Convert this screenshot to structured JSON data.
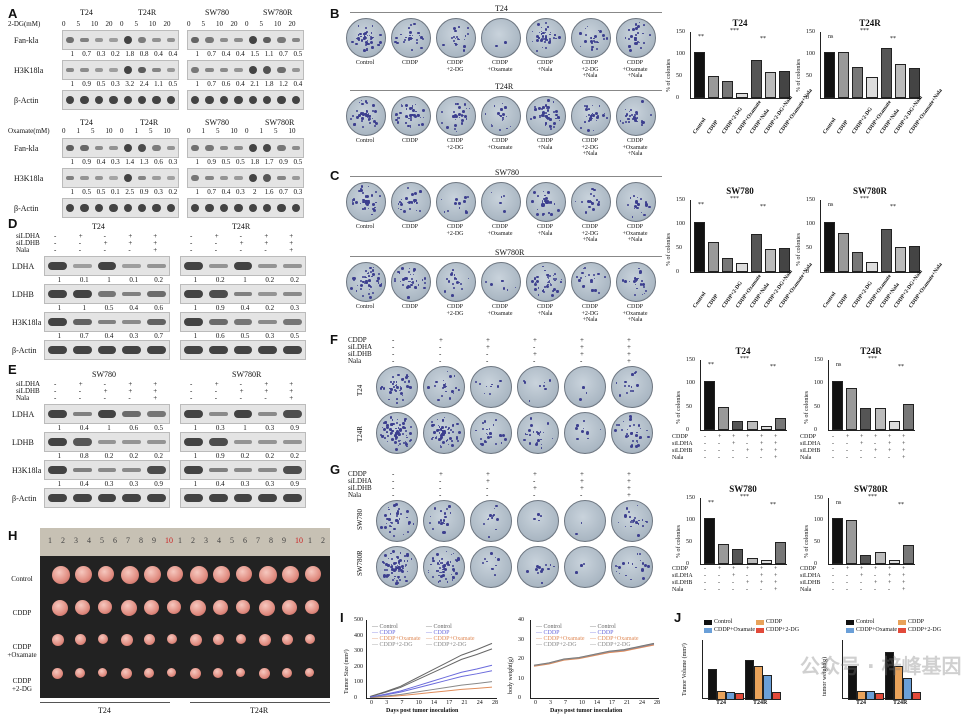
{
  "panels": {
    "A": "A",
    "B": "B",
    "C": "C",
    "D": "D",
    "E": "E",
    "F": "F",
    "G": "G",
    "H": "H",
    "I": "I",
    "J": "J"
  },
  "panelA": {
    "top_cells": [
      "T24",
      "T24R",
      "SW780",
      "SW780R"
    ],
    "dg_label": "2-DG(mM)",
    "dg_doses": [
      "0",
      "5",
      "10",
      "20"
    ],
    "rows": [
      {
        "name": "Fan-kla",
        "vals_left": [
          "1",
          "0.7",
          "0.3",
          "0.2",
          "1.8",
          "0.8",
          "0.4",
          "0.4"
        ],
        "vals_right": [
          "1",
          "0.7",
          "0.4",
          "0.4",
          "1.5",
          "1.1",
          "0.7",
          "0.5"
        ]
      },
      {
        "name": "H3K18la",
        "vals_left": [
          "1",
          "0.9",
          "0.5",
          "0.3",
          "3.2",
          "2.4",
          "1.1",
          "0.5"
        ],
        "vals_right": [
          "1",
          "0.7",
          "0.6",
          "0.4",
          "2.1",
          "1.8",
          "1.2",
          "0.4"
        ]
      },
      {
        "name": "β-Actin"
      }
    ],
    "ox_label": "Oxamate(mM)",
    "ox_doses": [
      "0",
      "1",
      "5",
      "10"
    ],
    "rows2": [
      {
        "name": "Fan-kla",
        "vals_left": [
          "1",
          "0.9",
          "0.4",
          "0.3",
          "1.4",
          "1.3",
          "0.6",
          "0.3"
        ],
        "vals_right": [
          "1",
          "0.9",
          "0.5",
          "0.5",
          "1.8",
          "1.7",
          "0.9",
          "0.5"
        ]
      },
      {
        "name": "H3K18la",
        "vals_left": [
          "1",
          "0.5",
          "0.5",
          "0.1",
          "2.5",
          "0.9",
          "0.3",
          "0.2"
        ],
        "vals_right": [
          "1",
          "0.7",
          "0.4",
          "0.3",
          "2",
          "1.6",
          "0.7",
          "0.3"
        ]
      },
      {
        "name": "β-Actin"
      }
    ]
  },
  "panelD": {
    "cells": [
      "T24",
      "T24R"
    ],
    "conds": [
      "siLDHA",
      "siLDHB",
      "Nala"
    ],
    "pm": [
      [
        "-",
        "+",
        "-",
        "+",
        "+"
      ],
      [
        "-",
        "-",
        "+",
        "+",
        "+"
      ],
      [
        "-",
        "-",
        "-",
        "-",
        "+"
      ]
    ],
    "rows": [
      {
        "name": "LDHA",
        "vals_left": [
          "1",
          "0.1",
          "1",
          "0.1",
          "0.2"
        ],
        "vals_right": [
          "1",
          "0.2",
          "1",
          "0.2",
          "0.2"
        ]
      },
      {
        "name": "LDHB",
        "vals_left": [
          "1",
          "1",
          "0.5",
          "0.4",
          "0.6"
        ],
        "vals_right": [
          "1",
          "0.9",
          "0.4",
          "0.2",
          "0.3"
        ]
      },
      {
        "name": "H3K18la",
        "vals_left": [
          "1",
          "0.7",
          "0.4",
          "0.3",
          "0.7"
        ],
        "vals_right": [
          "1",
          "0.6",
          "0.5",
          "0.3",
          "0.5"
        ]
      },
      {
        "name": "β-Actin"
      }
    ]
  },
  "panelE": {
    "cells": [
      "SW780",
      "SW780R"
    ],
    "conds": [
      "siLDHA",
      "siLDHB",
      "Nala"
    ],
    "rows": [
      {
        "name": "LDHA",
        "vals_left": [
          "1",
          "0.4",
          "1",
          "0.6",
          "0.5"
        ],
        "vals_right": [
          "1",
          "0.3",
          "1",
          "0.3",
          "0.9"
        ]
      },
      {
        "name": "LDHB",
        "vals_left": [
          "1",
          "0.8",
          "0.2",
          "0.2",
          "0.2"
        ],
        "vals_right": [
          "1",
          "0.9",
          "0.2",
          "0.2",
          "0.2"
        ]
      },
      {
        "name": "H3K18la",
        "vals_left": [
          "1",
          "0.4",
          "0.3",
          "0.3",
          "0.9"
        ],
        "vals_right": [
          "1",
          "0.4",
          "0.3",
          "0.3",
          "0.9"
        ]
      },
      {
        "name": "β-Actin"
      }
    ]
  },
  "panelB": {
    "top": "T24",
    "mid": "T24R",
    "labels": [
      "Control",
      "CDDP",
      "CDDP\n+2-DG",
      "CDDP\n+Oxamate",
      "CDDP\n+Nala",
      "CDDP\n+2-DG\n+Nala",
      "CDDP\n+Oxamate\n+Nala"
    ]
  },
  "panelC": {
    "top": "SW780",
    "mid": "SW780R"
  },
  "panelF": {
    "rows": [
      "T24",
      "T24R"
    ],
    "conds": [
      "CDDP",
      "siLDHA",
      "siLDHB",
      "Nala"
    ]
  },
  "panelG": {
    "rows": [
      "SW780",
      "SW780R"
    ],
    "conds": [
      "CDDP",
      "siLDHA",
      "siLDHB",
      "Nala"
    ]
  },
  "panelH": {
    "ruler": [
      "1",
      "2",
      "3",
      "4",
      "5",
      "6",
      "7",
      "8",
      "9",
      "10",
      "1",
      "2",
      "3",
      "4",
      "5",
      "6",
      "7",
      "8",
      "9",
      "10",
      "1",
      "2"
    ],
    "groups": [
      "Control",
      "CDDP",
      "CDDP\n+Oxamate",
      "CDDP\n+2-DG"
    ],
    "cells": [
      "T24",
      "T24R"
    ]
  },
  "panelI": {
    "tumor_ylabel": "Tumor Size (mm³)",
    "bw_ylabel": "body weight(g)",
    "xlabel": "Days post tumor inoculation",
    "days": [
      "0",
      "3",
      "7",
      "10",
      "14",
      "17",
      "21",
      "24",
      "28"
    ],
    "legend_T24": [
      "Control",
      "CDDP",
      "CDDP+Oxamate",
      "CDDP+2-DG"
    ],
    "legend_T24R": [
      "Control",
      "CDDP",
      "CDDP+Oxamate",
      "CDDP+2-DG"
    ],
    "yt": [
      "0",
      "100",
      "200",
      "300",
      "400",
      "500"
    ],
    "yb": [
      "0",
      "10",
      "20",
      "30",
      "40"
    ]
  },
  "panelJ": {
    "legend": [
      "Control",
      "CDDP",
      "CDDP+Oxamate",
      "CDDP+2-DG"
    ],
    "vol_ylabel": "Tumor Volume (mm³)",
    "wt_ylabel": "tumor weight(g)",
    "groups": [
      "T24",
      "T24R"
    ]
  },
  "chart_data": [
    {
      "type": "bar",
      "title": "T24",
      "categories": [
        "Control",
        "CDDP",
        "CDDP+2-DG",
        "CDDP+Oxamate",
        "CDDP+Nala",
        "CDDP+2-DG+Nala",
        "CDDP+Oxamate+Nala"
      ],
      "values": [
        100,
        45,
        35,
        6,
        82,
        55,
        57
      ],
      "ylabel": "% of colonies",
      "ylim": [
        0,
        150
      ]
    },
    {
      "type": "bar",
      "title": "T24R",
      "categories": [
        "Control",
        "CDDP",
        "CDDP+2-DG",
        "CDDP+Oxamate",
        "CDDP+Nala",
        "CDDP+2-DG+Nala",
        "CDDP+Oxamate+Nala"
      ],
      "values": [
        100,
        99,
        65,
        43,
        108,
        72,
        64
      ],
      "ylabel": "% of colonies",
      "ylim": [
        0,
        150
      ]
    },
    {
      "type": "bar",
      "title": "SW780",
      "categories": [
        "Control",
        "CDDP",
        "CDDP+2-DG",
        "CDDP+Oxamate",
        "CDDP+Nala",
        "CDDP+2-DG+Nala",
        "CDDP+Oxamate+Nala"
      ],
      "values": [
        100,
        58,
        25,
        15,
        75,
        43,
        45
      ],
      "ylabel": "% of colonies",
      "ylim": [
        0,
        150
      ]
    },
    {
      "type": "bar",
      "title": "SW780R",
      "categories": [
        "Control",
        "CDDP",
        "CDDP+2-DG",
        "CDDP+Oxamate",
        "CDDP+Nala",
        "CDDP+2-DG+Nala",
        "CDDP+Oxamate+Nala"
      ],
      "values": [
        100,
        78,
        38,
        17,
        86,
        47,
        50
      ],
      "ylabel": "% of colonies",
      "ylim": [
        0,
        150
      ]
    },
    {
      "type": "bar",
      "title": "T24",
      "values": [
        100,
        45,
        15,
        14,
        5,
        22
      ],
      "ylabel": "% of colonies",
      "ylim": [
        0,
        150
      ]
    },
    {
      "type": "bar",
      "title": "T24R",
      "values": [
        100,
        85,
        42,
        43,
        15,
        52
      ],
      "ylabel": "% of colonies",
      "ylim": [
        0,
        150
      ]
    },
    {
      "type": "bar",
      "title": "SW780",
      "values": [
        100,
        40,
        30,
        8,
        4,
        45
      ],
      "ylabel": "% of colonies",
      "ylim": [
        0,
        150
      ]
    },
    {
      "type": "bar",
      "title": "SW780R",
      "values": [
        100,
        95,
        15,
        22,
        5,
        38
      ],
      "ylabel": "% of colonies",
      "ylim": [
        0,
        150
      ]
    }
  ],
  "sig": {
    "ns": "ns",
    "one": "*",
    "two": "**",
    "three": "***"
  },
  "watermark": "公众号 · 梓峰基因"
}
